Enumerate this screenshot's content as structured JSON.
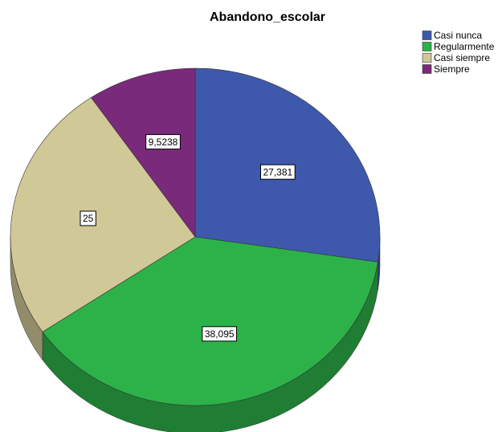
{
  "chart_data": {
    "type": "pie",
    "title": "Abandono_escolar",
    "categories": [
      "Casi nunca",
      "Regularmente",
      "Casi siempre",
      "Siempre"
    ],
    "values": [
      27.381,
      38.095,
      25,
      9.5238
    ],
    "value_labels": [
      "27,381",
      "38,095",
      "25",
      "9,5238"
    ],
    "colors": [
      "#3e58ac",
      "#2db24a",
      "#d0c897",
      "#7a2a7a"
    ],
    "legend": "top-right"
  }
}
